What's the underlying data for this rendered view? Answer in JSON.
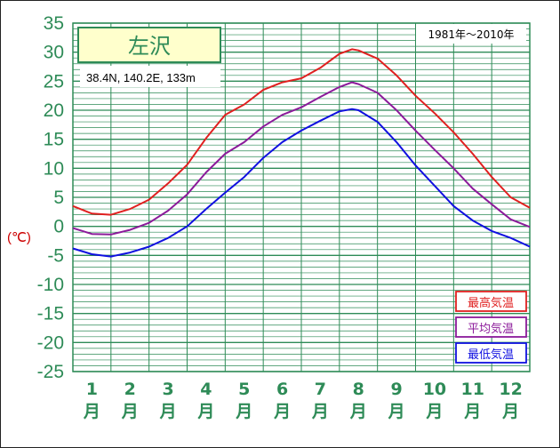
{
  "chart_data": {
    "type": "line",
    "title": "左沢",
    "coords": "38.4N,  140.2E,  133m",
    "period": "1981年〜2010年",
    "ylabel": "(℃)",
    "ylim": [
      -25,
      35
    ],
    "yticks": [
      35,
      30,
      25,
      20,
      15,
      10,
      5,
      0,
      -5,
      -10,
      -15,
      -20,
      -25
    ],
    "xlim": [
      0.5,
      12.5
    ],
    "categories": [
      "1\n月",
      "2\n月",
      "3\n月",
      "4\n月",
      "5\n月",
      "6\n月",
      "7\n月",
      "8\n月",
      "9\n月",
      "10\n月",
      "11\n月",
      "12\n月"
    ],
    "month_numbers": [
      "1",
      "2",
      "3",
      "4",
      "5",
      "6",
      "7",
      "8",
      "9",
      "10",
      "11",
      "12"
    ],
    "month_suffix": "月",
    "grid": true,
    "series": [
      {
        "name": "最高気温",
        "color": "#e02020",
        "x": [
          0.5,
          1.0,
          1.5,
          2.0,
          2.5,
          3.0,
          3.5,
          4.0,
          4.5,
          5.0,
          5.5,
          6.0,
          6.5,
          7.0,
          7.5,
          7.83,
          8.0,
          8.5,
          9.0,
          9.5,
          10.0,
          10.5,
          11.0,
          11.5,
          12.0,
          12.5
        ],
        "values": [
          3.5,
          2.2,
          2.0,
          3.0,
          4.6,
          7.4,
          10.6,
          15.2,
          19.2,
          21.0,
          23.5,
          24.8,
          25.5,
          27.3,
          29.7,
          30.5,
          30.3,
          28.9,
          26.0,
          22.5,
          19.5,
          16.2,
          12.5,
          8.5,
          5.0,
          3.2
        ]
      },
      {
        "name": "平均気温",
        "color": "#8b1a9a",
        "x": [
          0.5,
          1.0,
          1.5,
          2.0,
          2.5,
          3.0,
          3.5,
          4.0,
          4.5,
          5.0,
          5.5,
          6.0,
          6.5,
          7.0,
          7.5,
          7.83,
          8.0,
          8.5,
          9.0,
          9.5,
          10.0,
          10.5,
          11.0,
          11.5,
          12.0,
          12.5
        ],
        "values": [
          -0.3,
          -1.3,
          -1.4,
          -0.6,
          0.6,
          2.7,
          5.5,
          9.3,
          12.5,
          14.5,
          17.2,
          19.2,
          20.5,
          22.3,
          24.0,
          24.8,
          24.5,
          23.0,
          20.0,
          16.5,
          13.2,
          10.0,
          6.5,
          3.8,
          1.2,
          -0.1
        ]
      },
      {
        "name": "最低気温",
        "color": "#1010e0",
        "x": [
          0.5,
          1.0,
          1.5,
          2.0,
          2.5,
          3.0,
          3.5,
          4.0,
          4.5,
          5.0,
          5.5,
          6.0,
          6.5,
          7.0,
          7.5,
          7.83,
          8.0,
          8.5,
          9.0,
          9.5,
          10.0,
          10.5,
          11.0,
          11.5,
          12.0,
          12.5
        ],
        "values": [
          -3.8,
          -4.8,
          -5.2,
          -4.5,
          -3.5,
          -2.0,
          0.0,
          3.0,
          5.8,
          8.5,
          11.8,
          14.5,
          16.5,
          18.2,
          19.8,
          20.2,
          20.0,
          18.0,
          14.5,
          10.5,
          7.0,
          3.5,
          1.0,
          -0.8,
          -2.0,
          -3.5
        ]
      }
    ]
  },
  "colors": {
    "grid": "#2e8b57",
    "title_fill": "#ffffcc",
    "title_text": "#2e8b57",
    "ytick": "#2e8b57",
    "unit": "#cc0000"
  }
}
